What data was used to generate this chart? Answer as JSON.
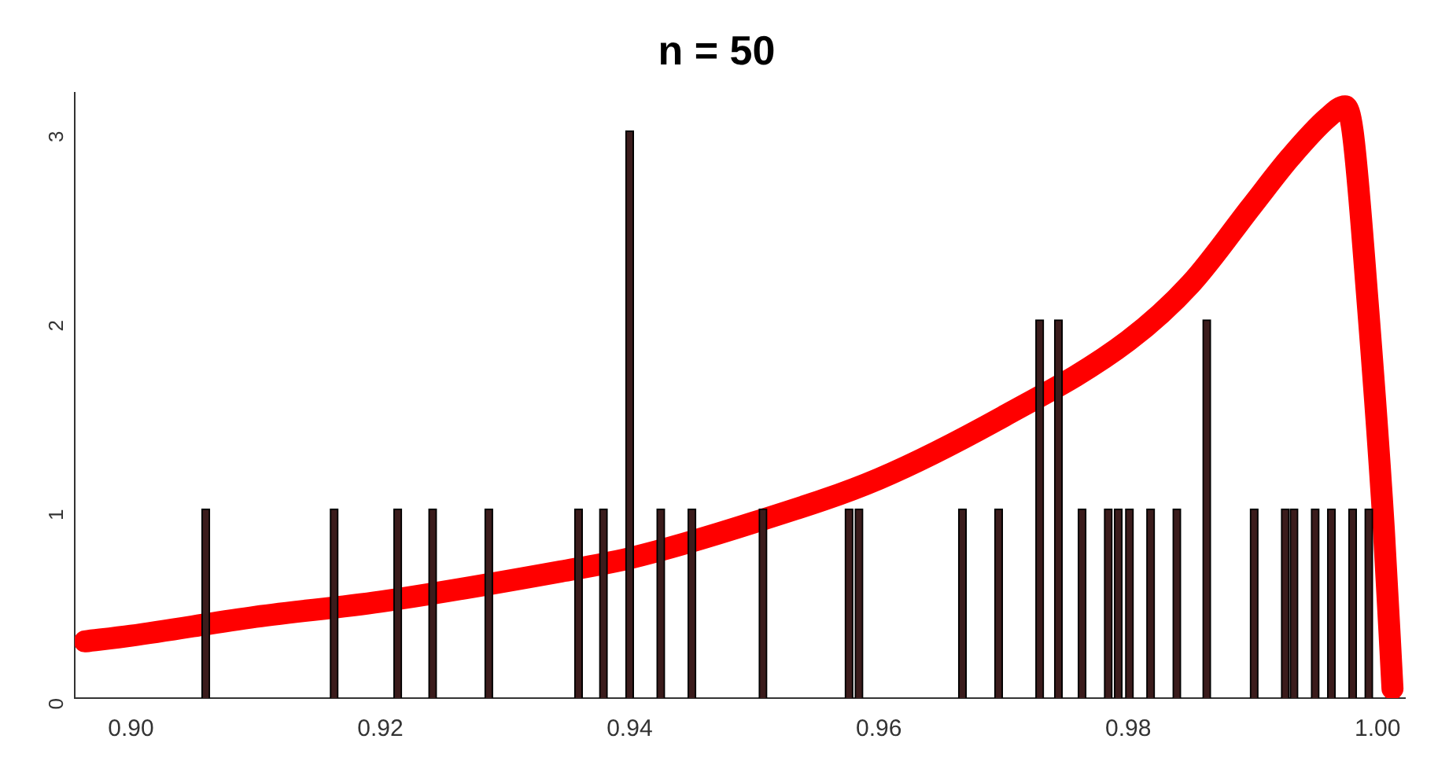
{
  "chart_data": {
    "type": "bar",
    "title": "n = 50",
    "x": [
      0.906,
      0.9163,
      0.9214,
      0.9242,
      0.9287,
      0.9359,
      0.9379,
      0.94,
      0.9425,
      0.945,
      0.9507,
      0.9576,
      0.9584,
      0.9667,
      0.9696,
      0.9729,
      0.9744,
      0.9763,
      0.9784,
      0.9792,
      0.9801,
      0.9818,
      0.9839,
      0.9863,
      0.9901,
      0.9926,
      0.9933,
      0.995,
      0.9963,
      0.998,
      0.9993
    ],
    "series": [
      {
        "color": "#3b1c1c",
        "values": [
          1,
          1,
          1,
          1,
          1,
          1,
          1,
          3,
          1,
          1,
          1,
          1,
          1,
          1,
          1,
          2,
          2,
          1,
          1,
          1,
          1,
          1,
          1,
          2,
          1,
          1,
          1,
          1,
          1,
          1,
          1
        ]
      },
      {
        "type": "line",
        "color": "#ff0000",
        "x": [
          0.8963,
          0.9,
          0.91,
          0.92,
          0.9345,
          0.94,
          0.95,
          0.96,
          0.97,
          0.98,
          0.985,
          0.99,
          0.993,
          0.996,
          0.9974,
          0.998,
          0.9992,
          1.0005,
          1.0012
        ],
        "values": [
          0.3,
          0.33,
          0.43,
          0.51,
          0.67,
          0.74,
          0.93,
          1.16,
          1.49,
          1.89,
          2.19,
          2.61,
          2.86,
          3.07,
          3.13,
          3.0,
          2.1,
          0.9,
          0.05
        ]
      }
    ],
    "xlim": [
      0.8955,
      1.0022
    ],
    "xticks": [
      {
        "value": 0.9,
        "label": "0.90"
      },
      0.92,
      0.94,
      0.96,
      0.98,
      {
        "value": 1.0,
        "label": "1.00"
      }
    ],
    "ylim": [
      0,
      3.2
    ],
    "yticks": [
      0,
      1,
      2,
      3
    ],
    "grid": false,
    "legend": false
  }
}
